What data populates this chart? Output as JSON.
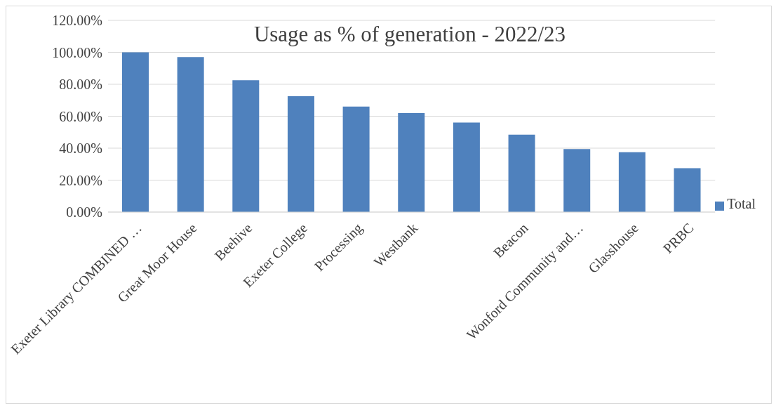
{
  "chart_data": {
    "type": "bar",
    "title": "Usage as  % of generation - 2022/23",
    "categories": [
      "Exeter Library COMBINED …",
      "Great Moor House",
      "Beehive",
      "Exeter College",
      "Processing",
      "Westbank",
      null,
      "Beacon",
      "Wonford Community and…",
      "Glasshouse",
      "PRBC"
    ],
    "series": [
      {
        "name": "Total",
        "color": "#4f81bd",
        "values": [
          100,
          97,
          82.5,
          72.5,
          66,
          62,
          56,
          48.5,
          39.5,
          37.5,
          27.5
        ]
      }
    ],
    "ylim": [
      0,
      120
    ],
    "yticks": [
      {
        "value": 0,
        "label": "0.00%"
      },
      {
        "value": 20,
        "label": "20.00%"
      },
      {
        "value": 40,
        "label": "40.00%"
      },
      {
        "value": 60,
        "label": "60.00%"
      },
      {
        "value": 80,
        "label": "80.00%"
      },
      {
        "value": 100,
        "label": "100.00%"
      },
      {
        "value": 120,
        "label": "120.00%"
      }
    ],
    "grid": "y",
    "legend": "right"
  }
}
